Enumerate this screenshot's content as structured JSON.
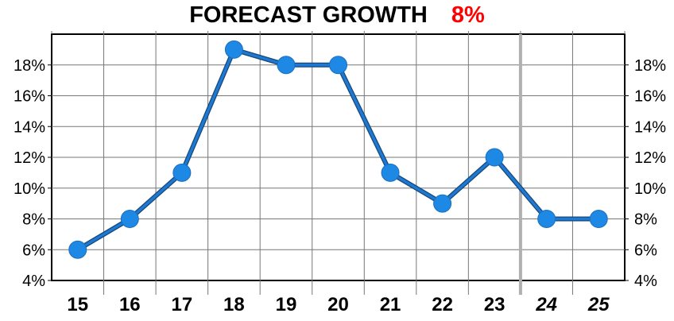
{
  "chart_data": {
    "type": "line",
    "title": "FORECAST GROWTH",
    "title_value": "8%",
    "categories": [
      "15",
      "16",
      "17",
      "18",
      "19",
      "20",
      "21",
      "22",
      "23",
      "24",
      "25"
    ],
    "forecast_categories": [
      "24",
      "25"
    ],
    "series": [
      {
        "values": [
          6,
          8,
          11,
          19,
          18,
          18,
          11,
          9,
          12,
          8,
          8
        ]
      }
    ],
    "ylim": [
      4,
      20
    ],
    "yticks": [
      4,
      6,
      8,
      10,
      12,
      14,
      16,
      18
    ],
    "ytick_labels": [
      "4%",
      "6%",
      "8%",
      "10%",
      "12%",
      "14%",
      "16%",
      "18%"
    ],
    "grid": true,
    "colors": {
      "line": "#1f78d1",
      "marker": "#1e88e5",
      "title_value": "#ff0000",
      "grid": "#777777",
      "forecast_divider": "#b0b0b0"
    }
  }
}
